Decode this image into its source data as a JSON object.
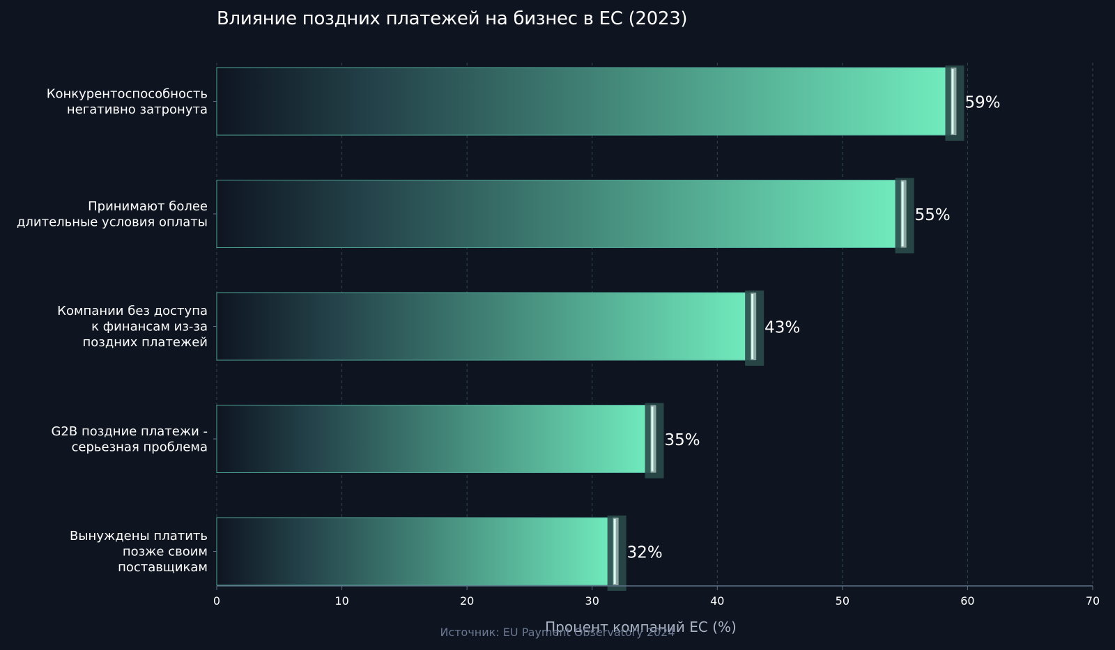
{
  "chart_data": {
    "type": "bar",
    "orientation": "horizontal",
    "title": "Влияние поздних платежей на бизнес в ЕС (2023)",
    "xlabel": "Процент компаний ЕС (%)",
    "ylabel": "",
    "xlim": [
      0,
      70
    ],
    "xticks": [
      0,
      10,
      20,
      30,
      40,
      50,
      60,
      70
    ],
    "grid": true,
    "categories": [
      [
        "Конкурентоспособность",
        "негативно затронута"
      ],
      [
        "Принимают более",
        "длительные условия оплаты"
      ],
      [
        "Компании без доступа",
        "к финансам из-за",
        "поздних платежей"
      ],
      [
        "G2B поздние платежи -",
        "серьезная проблема"
      ],
      [
        "Вынуждены платить",
        "позже своим",
        "поставщикам"
      ]
    ],
    "values": [
      59,
      55,
      43,
      35,
      32
    ],
    "value_labels": [
      "59%",
      "55%",
      "43%",
      "35%",
      "32%"
    ],
    "source": "Источник: EU Payment Observatory 2024"
  },
  "colors": {
    "background": "#0e1521",
    "bar_start": "#0e1521",
    "bar_end": "#72edbf",
    "bar_outline": "#4fa595",
    "axis": "#5c7185",
    "grid": "#2c4850",
    "text": "#ffffff",
    "muted": "#6b7891"
  }
}
